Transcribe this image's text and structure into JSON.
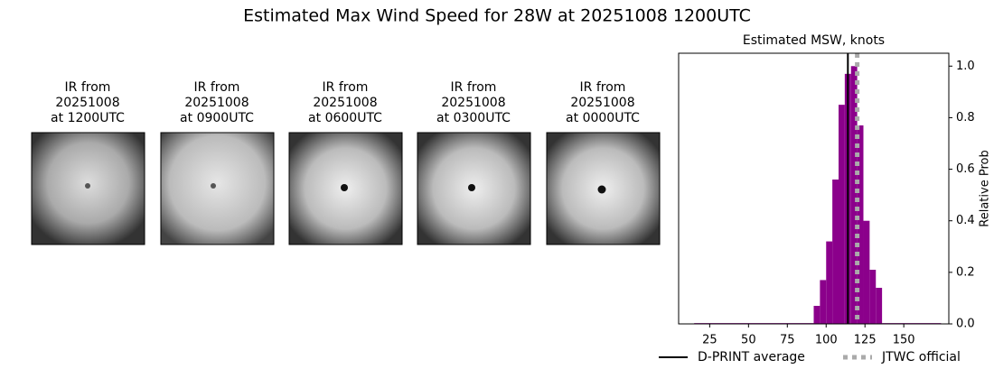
{
  "title": "Estimated Max Wind Speed for 28W at 20251008 1200UTC",
  "panels": [
    {
      "title": "IR from\n20251008\nat 1200UTC"
    },
    {
      "title": "IR from\n20251008\nat 0900UTC"
    },
    {
      "title": "IR from\n20251008\nat 0600UTC"
    },
    {
      "title": "IR from\n20251008\nat 0300UTC"
    },
    {
      "title": "IR from\n20251008\nat 0000UTC"
    }
  ],
  "chart_data": {
    "type": "histogram",
    "title": "Estimated MSW, knots",
    "y_label": "Relative Prob",
    "bins": [
      15,
      92,
      96,
      100,
      104,
      108,
      112,
      116,
      120,
      124,
      128,
      132,
      136,
      174
    ],
    "values": [
      0.003,
      0.07,
      0.17,
      0.32,
      0.56,
      0.85,
      0.97,
      1.0,
      0.77,
      0.4,
      0.21,
      0.14,
      0.003
    ],
    "color": "#8b008b",
    "xlim": [
      5,
      179
    ],
    "ylim": [
      0,
      1.05
    ],
    "xticks": [
      25,
      50,
      75,
      100,
      125,
      150
    ],
    "yticks": [
      {
        "value": 0,
        "label": "0.0"
      },
      {
        "value": 0.2,
        "label": "0.2"
      },
      {
        "value": 0.4,
        "label": "0.4"
      },
      {
        "value": 0.6,
        "label": "0.6"
      },
      {
        "value": 0.8,
        "label": "0.8"
      },
      {
        "value": 1.0,
        "label": "1.0"
      }
    ],
    "reference_lines": [
      {
        "name": "D-PRINT average",
        "value": 114,
        "color": "#000000",
        "style": "solid"
      },
      {
        "name": "JTWC official",
        "value": 120,
        "color": "#aaaaaa",
        "style": "dotted"
      }
    ]
  }
}
